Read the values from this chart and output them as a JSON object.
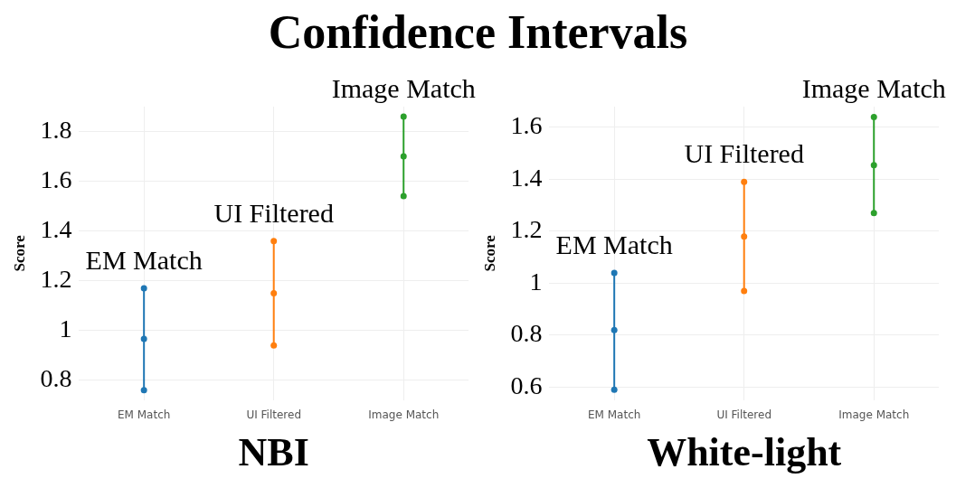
{
  "chart_data": [
    {
      "type": "line",
      "title": "Confidence Intervals",
      "xlabel": "NBI",
      "ylabel": "Score",
      "categories": [
        "EM Match",
        "UI Filtered",
        "Image Match"
      ],
      "ylim": [
        0.72,
        1.9
      ],
      "yticks": [
        0.8,
        1,
        1.2,
        1.4,
        1.6,
        1.8
      ],
      "grid": true,
      "marker": "circle",
      "series": [
        {
          "color": "#1f77b4",
          "x": [
            "EM Match",
            "EM Match",
            "EM Match"
          ],
          "values": [
            0.76,
            0.966,
            1.17
          ]
        },
        {
          "color": "#ff7f0e",
          "x": [
            "UI Filtered",
            "UI Filtered",
            "UI Filtered"
          ],
          "values": [
            0.94,
            1.15,
            1.36
          ]
        },
        {
          "color": "#2ca02c",
          "x": [
            "Image Match",
            "Image Match",
            "Image Match"
          ],
          "values": [
            1.54,
            1.7,
            1.86
          ]
        }
      ],
      "annotations": [
        {
          "text": "EM Match",
          "x": "EM Match",
          "y": 1.17
        },
        {
          "text": "UI Filtered",
          "x": "UI Filtered",
          "y": 1.36
        },
        {
          "text": "Image Match",
          "x": "Image Match",
          "y": 1.86
        }
      ]
    },
    {
      "type": "line",
      "xlabel": "White-light",
      "ylabel": "Score",
      "categories": [
        "EM Match",
        "UI Filtered",
        "Image Match"
      ],
      "ylim": [
        0.55,
        1.68
      ],
      "yticks": [
        0.6,
        0.8,
        1,
        1.2,
        1.4,
        1.6
      ],
      "grid": true,
      "marker": "circle",
      "series": [
        {
          "color": "#1f77b4",
          "x": [
            "EM Match",
            "EM Match",
            "EM Match"
          ],
          "values": [
            0.59,
            0.82,
            1.04
          ]
        },
        {
          "color": "#ff7f0e",
          "x": [
            "UI Filtered",
            "UI Filtered",
            "UI Filtered"
          ],
          "values": [
            0.97,
            1.18,
            1.39
          ]
        },
        {
          "color": "#2ca02c",
          "x": [
            "Image Match",
            "Image Match",
            "Image Match"
          ],
          "values": [
            1.27,
            1.455,
            1.64
          ]
        }
      ],
      "annotations": [
        {
          "text": "EM Match",
          "x": "EM Match",
          "y": 1.04
        },
        {
          "text": "UI Filtered",
          "x": "UI Filtered",
          "y": 1.39
        },
        {
          "text": "Image Match",
          "x": "Image Match",
          "y": 1.64
        }
      ]
    }
  ]
}
